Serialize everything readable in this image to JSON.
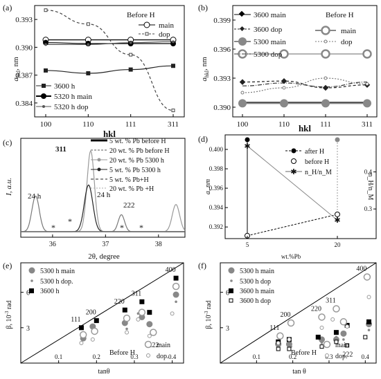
{
  "chart_data": [
    {
      "panel": "(a)",
      "type": "line",
      "xlabel": "hkl",
      "ylabel": "a_hkl, nm",
      "categories": [
        "100",
        "110",
        "111",
        "311"
      ],
      "yticks": [
        "0.384",
        "0.387",
        "0.390",
        "0.393"
      ],
      "ylim": [
        0.3825,
        0.3945
      ],
      "legend_title": "Before H",
      "legend_top": [
        "main",
        "dop"
      ],
      "legend_bottom": [
        "3600 h",
        "5320 h main",
        "5320 h dop"
      ],
      "series": [
        {
          "name": "main",
          "values": [
            0.3908,
            0.3908,
            0.3908,
            0.3908
          ],
          "marker": "open-circle",
          "style": "solid",
          "color": "#000000",
          "legend": "top"
        },
        {
          "name": "dop",
          "values": [
            0.394,
            0.3925,
            0.3892,
            0.3832
          ],
          "marker": "open-square",
          "style": "dashed",
          "color": "#444444",
          "legend": "top"
        },
        {
          "name": "3600 h",
          "values": [
            0.3875,
            0.3872,
            0.3876,
            0.388
          ],
          "marker": "square",
          "style": "solid",
          "color": "#222222",
          "legend": "bottom"
        },
        {
          "name": "5320 h main",
          "values": [
            0.3905,
            0.3904,
            0.3904,
            0.3904
          ],
          "marker": "filled-circle",
          "style": "solid",
          "color": "#000000",
          "legend": "bottom"
        },
        {
          "name": "5320 h dop",
          "values": [
            0.3903,
            0.3903,
            0.3905,
            0.3906
          ],
          "marker": "small-dot",
          "style": "solid",
          "color": "#555555",
          "legend": "bottom"
        }
      ]
    },
    {
      "panel": "(b)",
      "type": "line",
      "xlabel": "hkl",
      "ylabel": "a_hkl, nm",
      "categories": [
        "100",
        "110",
        "111",
        "311"
      ],
      "yticks": [
        "0.390",
        "0.393",
        "0.396",
        "0.399"
      ],
      "ylim": [
        0.389,
        0.4005
      ],
      "legend_title": "Before H",
      "legend_right": [
        "main",
        "dop"
      ],
      "legend_left": [
        "3600  main",
        "3600  dop",
        "5300 main",
        "5300 dop"
      ],
      "series": [
        {
          "name": "3600  main",
          "values": [
            0.3905,
            0.3905,
            0.3905,
            0.3905
          ],
          "marker": "diamond",
          "style": "solid",
          "color": "#000000",
          "legend": "left"
        },
        {
          "name": "3600  dop",
          "values": [
            0.3926,
            0.3927,
            0.392,
            0.3923
          ],
          "marker": "diamond",
          "style": "dashed",
          "color": "#222222",
          "legend": "left"
        },
        {
          "name": "5300 main",
          "values": [
            0.3904,
            0.3904,
            0.3904,
            0.3904
          ],
          "marker": "big-grey-circle",
          "style": "solid",
          "color": "#888888",
          "legend": "left"
        },
        {
          "name": "5300 dop",
          "values": [
            0.3922,
            0.3925,
            0.3921,
            0.3926
          ],
          "marker": "none",
          "style": "dashdot",
          "color": "#333333",
          "legend": "left"
        },
        {
          "name": "main",
          "values": [
            0.3955,
            0.3955,
            0.3955,
            0.3955
          ],
          "marker": "open-grey-circle",
          "style": "solid",
          "color": "#888888",
          "legend": "right"
        },
        {
          "name": "dop",
          "values": [
            0.3915,
            0.392,
            0.393,
            0.3924
          ],
          "marker": "small-open",
          "style": "dotted",
          "color": "#777777",
          "legend": "right"
        }
      ]
    },
    {
      "panel": "(c)",
      "type": "line",
      "xlabel": "2θ, degree",
      "ylabel": "I, a.u.",
      "xticks": [
        "36",
        "37",
        "38"
      ],
      "xlim": [
        35.4,
        38.5
      ],
      "annotations": [
        "311",
        "24 h",
        "24 h",
        "222",
        "*",
        "*",
        "*",
        "*"
      ],
      "legend": [
        "5 wt. % Pb before H",
        "20 wt. % Pb before H",
        "20 wt. % Pb 5300 h",
        "5 wt. % Pb 5300 h",
        "5 wt. % Pb+H",
        "20 wt. % Pb +H"
      ],
      "peaks": [
        {
          "name": "20 wt. % Pb before H",
          "center": 36.72,
          "height": 0.95,
          "width": 0.07,
          "color": "#999999"
        },
        {
          "name": "5 wt. % Pb 5300 h",
          "center": 36.68,
          "height": 0.55,
          "width": 0.08,
          "color": "#222222"
        },
        {
          "name": "24 h (311)",
          "center": 35.68,
          "height": 0.42,
          "width": 0.07,
          "color": "#777777"
        },
        {
          "name": "24 h",
          "center": 37.3,
          "height": 0.2,
          "width": 0.06,
          "color": "#777777"
        },
        {
          "name": "222",
          "center": 38.33,
          "height": 0.32,
          "width": 0.07,
          "color": "#999999"
        }
      ]
    },
    {
      "panel": "(d)",
      "type": "line",
      "xlabel": "wt.%Pb",
      "ylabel": "a, nm",
      "ylabel_right": "n_H/n_M",
      "categories": [
        "5",
        "20"
      ],
      "yticks": [
        "0.392",
        "0.394",
        "0.396",
        "0.398",
        "0.400"
      ],
      "ylim": [
        0.3908,
        0.4015
      ],
      "yticks_right": [
        "0.3",
        "0.4"
      ],
      "ylim_right": [
        0.22,
        0.5
      ],
      "legend": [
        "after H",
        "before H",
        "n_H/n_M"
      ],
      "series": [
        {
          "name": "after H",
          "values": [
            0.401,
            0.401
          ],
          "marker": "filled-circle",
          "color": "#000000"
        },
        {
          "name": "before H",
          "values": [
            0.3911,
            0.3933
          ],
          "marker": "open-circle",
          "color": "#000000"
        },
        {
          "name": "n_H/n_M",
          "values": [
            0.47,
            0.27
          ],
          "marker": "asterisk",
          "color": "#666666",
          "axis": "right"
        }
      ]
    },
    {
      "panel": "(e)",
      "type": "scatter",
      "xlabel": "tanθ",
      "ylabel": "β, 10^-3 rad",
      "xticks": [
        "0.1",
        "0.2",
        "0.3",
        "0.4"
      ],
      "yticks": [
        "3",
        "6"
      ],
      "xlim": [
        0.0,
        0.43
      ],
      "ylim": [
        0.0,
        8.5
      ],
      "hkl_labels": [
        "111",
        "200",
        "220",
        "311",
        "222",
        "400"
      ],
      "legend_top": [
        "5300 h main",
        "5300 h dop.",
        "3600 h"
      ],
      "legend_bottom_title": "Before H",
      "legend_bottom": [
        "main",
        "dop."
      ],
      "series": [
        {
          "name": "5300 h main",
          "x": [
            0.165,
            0.19,
            0.275,
            0.32,
            0.34,
            0.41
          ],
          "y": [
            2.1,
            3.1,
            3.4,
            3.9,
            3.3,
            5.8
          ],
          "marker": "grey-circle"
        },
        {
          "name": "5300 h dop.",
          "x": [
            0.16,
            0.19,
            0.28,
            0.31,
            0.35,
            0.41
          ],
          "y": [
            2.5,
            2.7,
            2.9,
            4.2,
            2.6,
            5.2
          ],
          "marker": "small-dot"
        },
        {
          "name": "3600 h",
          "x": [
            0.16,
            0.2,
            0.275,
            0.32,
            0.34,
            0.41
          ],
          "y": [
            3.0,
            3.6,
            4.5,
            5.2,
            4.3,
            7.2
          ],
          "marker": "black-square"
        },
        {
          "name": "main",
          "x": [
            0.165,
            0.195,
            0.28,
            0.32,
            0.35,
            0.41
          ],
          "y": [
            2.4,
            2.7,
            3.8,
            4.3,
            2.6,
            6.5
          ],
          "marker": "open-circle"
        },
        {
          "name": "dop.",
          "x": [
            0.16,
            0.19,
            0.28,
            0.31,
            0.34,
            0.4
          ],
          "y": [
            1.7,
            2.0,
            2.6,
            3.7,
            2.3,
            4.2
          ],
          "marker": "small-open"
        }
      ],
      "reference_line": [
        [
          0.0,
          0.0
        ],
        [
          0.43,
          8.5
        ]
      ]
    },
    {
      "panel": "(f)",
      "type": "scatter",
      "xlabel": "tan θ",
      "ylabel": "β, 10^-3 rad",
      "xticks": [
        "0.1",
        "0.2",
        "0.3",
        "0.4"
      ],
      "yticks": [
        "3",
        "6"
      ],
      "xlim": [
        0.0,
        0.43
      ],
      "ylim": [
        0.0,
        8.5
      ],
      "hkl_labels": [
        "111",
        "200",
        "220",
        "311",
        "222",
        "400"
      ],
      "legend_top": [
        "5300 h main",
        "5300 h dop",
        "3600 h main",
        "3600 h dop"
      ],
      "legend_bottom_title": "Before H",
      "legend_bottom": [
        "main",
        "dop."
      ],
      "series": [
        {
          "name": "5300 h main",
          "x": [
            0.16,
            0.19,
            0.28,
            0.32,
            0.34,
            0.41
          ],
          "y": [
            1.6,
            1.6,
            2.0,
            2.0,
            2.5,
            3.3
          ],
          "marker": "grey-circle"
        },
        {
          "name": "5300 h dop",
          "x": [
            0.16,
            0.195,
            0.28,
            0.32,
            0.34,
            0.41
          ],
          "y": [
            1.3,
            1.4,
            1.7,
            2.2,
            2.0,
            2.8
          ],
          "marker": "small-dot"
        },
        {
          "name": "3600 h main",
          "x": [
            0.16,
            0.19,
            0.27,
            0.32,
            0.35,
            0.41
          ],
          "y": [
            1.8,
            2.0,
            2.2,
            2.6,
            3.2,
            3.5
          ],
          "marker": "black-square"
        },
        {
          "name": "3600 h dop",
          "x": [
            0.16,
            0.19,
            0.28,
            0.32,
            0.35,
            0.4
          ],
          "y": [
            1.2,
            1.2,
            1.4,
            1.8,
            1.5,
            2.2
          ],
          "marker": "open-square"
        },
        {
          "name": "main",
          "x": [
            0.165,
            0.195,
            0.28,
            0.32,
            0.34,
            0.405
          ],
          "y": [
            2.3,
            3.4,
            3.9,
            4.6,
            3.5,
            7.3
          ],
          "marker": "open-circle"
        },
        {
          "name": "dop.",
          "x": [
            0.16,
            0.19,
            0.28,
            0.31,
            0.35,
            0.41
          ],
          "y": [
            1.7,
            2.0,
            3.0,
            3.7,
            3.1,
            5.6
          ],
          "marker": "small-open"
        }
      ],
      "reference_line": [
        [
          0.0,
          0.0
        ],
        [
          0.43,
          8.5
        ]
      ]
    }
  ]
}
